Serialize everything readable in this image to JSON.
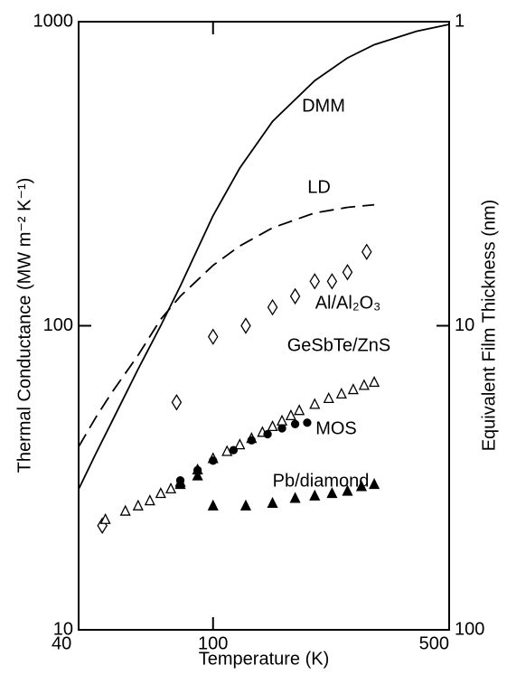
{
  "chart_data": {
    "type": "scatter",
    "xlabel": "Temperature (K)",
    "ylabel": "Thermal Conductance (MW m⁻² K⁻¹)",
    "y2label": "Equivalent Film Thickness (nm)",
    "xscale": "log",
    "yscale": "log",
    "y2scale": "log",
    "xlim": [
      40,
      500
    ],
    "xticks": [
      40,
      100,
      500
    ],
    "ylim": [
      10,
      1000
    ],
    "yticks": [
      10,
      100,
      1000
    ],
    "y2lim": [
      100,
      1
    ],
    "y2ticks": [
      1,
      10,
      100
    ],
    "series": [
      {
        "name": "DMM",
        "color": "#000000",
        "style": "solid",
        "x": [
          40,
          45,
          50,
          60,
          70,
          80,
          100,
          120,
          150,
          200,
          250,
          300,
          400,
          500
        ],
        "values": [
          29,
          38,
          48,
          72,
          100,
          135,
          230,
          330,
          470,
          640,
          760,
          840,
          930,
          980
        ]
      },
      {
        "name": "LD",
        "color": "#000000",
        "style": "dashed",
        "x": [
          40,
          45,
          50,
          60,
          70,
          80,
          100,
          120,
          150,
          200,
          250,
          300
        ],
        "values": [
          40,
          50,
          60,
          80,
          105,
          125,
          158,
          183,
          210,
          235,
          245,
          250
        ]
      },
      {
        "name": "Al/Al₂O₃",
        "color": "#000000",
        "style": "diamond-open",
        "x": [
          47,
          78,
          100,
          125,
          150,
          175,
          200,
          225,
          250,
          285
        ],
        "values": [
          22,
          56,
          92,
          100,
          115,
          125,
          140,
          140,
          150,
          175
        ]
      },
      {
        "name": "GeSbTe/ZnS",
        "color": "#000000",
        "style": "triangle-open",
        "x": [
          48,
          55,
          60,
          65,
          70,
          75,
          80,
          90,
          100,
          110,
          120,
          130,
          140,
          150,
          160,
          170,
          180,
          200,
          220,
          240,
          260,
          280,
          300
        ],
        "values": [
          23,
          24.5,
          25.5,
          26.5,
          28,
          29,
          30.5,
          33.5,
          36.5,
          38.5,
          40.5,
          42.5,
          44.5,
          46.5,
          48.5,
          50.5,
          52.5,
          55,
          57.5,
          59.5,
          61.5,
          63.5,
          65
        ]
      },
      {
        "name": "MOS",
        "color": "#000000",
        "style": "circle-filled",
        "x": [
          80,
          90,
          100,
          115,
          130,
          145,
          160,
          175,
          190
        ],
        "values": [
          31,
          33.5,
          36,
          39,
          42,
          44,
          46,
          47.5,
          48
        ]
      },
      {
        "name": "Pb/diamond",
        "color": "#000000",
        "style": "triangle-filled",
        "x": [
          80,
          90,
          100,
          125,
          150,
          175,
          200,
          225,
          250,
          275,
          300
        ],
        "values": [
          30,
          32,
          25.5,
          25.5,
          26,
          27,
          27.5,
          28,
          28.5,
          29.5,
          30
        ]
      }
    ]
  }
}
